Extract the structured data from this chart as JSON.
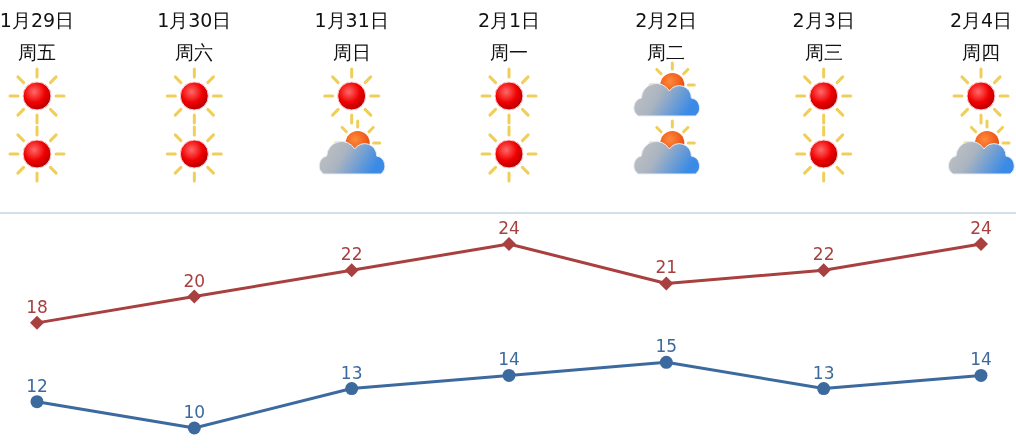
{
  "chart_data": {
    "type": "line",
    "categories": [
      "1月29日周五",
      "1月30日周六",
      "1月31日周日",
      "2月1日周一",
      "2月2日周二",
      "2月3日周三",
      "2月4日周四"
    ],
    "series": [
      {
        "color": "#a8403f",
        "marker": "diamond",
        "values": [
          18,
          20,
          22,
          24,
          21,
          22,
          24
        ]
      },
      {
        "color": "#3d6a9e",
        "marker": "circle",
        "values": [
          12,
          10,
          13,
          14,
          15,
          13,
          14
        ]
      }
    ],
    "tick_labels": "x",
    "data_labels": true
  }
}
